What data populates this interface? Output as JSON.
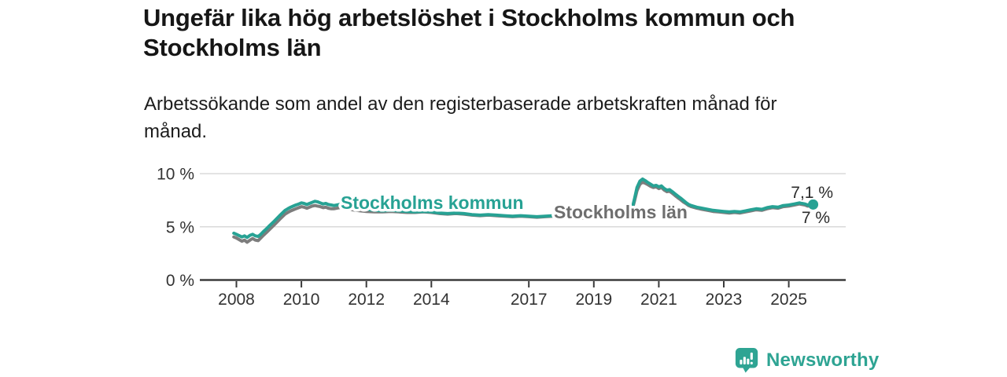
{
  "title": "Ungefär lika hög arbetslöshet i Stockholms kommun och Stockholms län",
  "subtitle": "Arbetssökande som andel av den registerbaserade arbetskraften månad för månad.",
  "footer": {
    "brand": "Newsworthy",
    "brand_color": "#2ea493",
    "logo_icon": "speech-bubble-bar-chart"
  },
  "chart_data": {
    "type": "line",
    "title": "Ungefär lika hög arbetslöshet i Stockholms kommun och Stockholms län",
    "xlabel": "",
    "ylabel": "",
    "unit": "%",
    "ylim": [
      0,
      10.5
    ],
    "xlim": [
      2006.8,
      2026.7
    ],
    "grid": "horizontal-only",
    "legend_position": "inline-labels",
    "colors": {
      "axis": "#3b3b3b",
      "gridline": "#d9d9d9",
      "tick_label": "#333333",
      "end_label_text": "#2b2b2b"
    },
    "y_ticks": [
      {
        "v": 0,
        "label": "0 %"
      },
      {
        "v": 5,
        "label": "5 %"
      },
      {
        "v": 10,
        "label": "10 %"
      }
    ],
    "x_ticks": [
      {
        "v": 2008,
        "label": "2008"
      },
      {
        "v": 2010,
        "label": "2010"
      },
      {
        "v": 2012,
        "label": "2012"
      },
      {
        "v": 2014,
        "label": "2014"
      },
      {
        "v": 2017,
        "label": "2017"
      },
      {
        "v": 2019,
        "label": "2019"
      },
      {
        "v": 2021,
        "label": "2021"
      },
      {
        "v": 2023,
        "label": "2023"
      },
      {
        "v": 2025,
        "label": "2025"
      }
    ],
    "x": [
      2007.92,
      2008.0,
      2008.17,
      2008.25,
      2008.33,
      2008.42,
      2008.5,
      2008.58,
      2008.67,
      2008.75,
      2008.83,
      2008.92,
      2009.0,
      2009.17,
      2009.33,
      2009.5,
      2009.58,
      2009.67,
      2009.75,
      2009.83,
      2009.92,
      2010.0,
      2010.08,
      2010.17,
      2010.25,
      2010.33,
      2010.42,
      2010.5,
      2010.58,
      2010.67,
      2010.75,
      2010.83,
      2010.92,
      2011.0,
      2011.17,
      2011.33,
      2011.5,
      2011.67,
      2011.83,
      2012.0,
      2012.25,
      2012.5,
      2012.75,
      2013.0,
      2013.25,
      2013.5,
      2013.75,
      2014.0,
      2014.25,
      2014.5,
      2014.75,
      2015.0,
      2015.25,
      2015.5,
      2015.75,
      2016.0,
      2016.25,
      2016.5,
      2016.75,
      2017.0,
      2017.25,
      2017.5,
      2017.75,
      2018.0,
      2018.25,
      2018.5,
      2018.75,
      2019.0,
      2019.25,
      2019.5,
      2019.75,
      2020.0,
      2020.17,
      2020.25,
      2020.33,
      2020.42,
      2020.5,
      2020.58,
      2020.67,
      2020.75,
      2020.83,
      2020.92,
      2021.0,
      2021.08,
      2021.17,
      2021.25,
      2021.33,
      2021.42,
      2021.5,
      2021.58,
      2021.67,
      2021.75,
      2021.83,
      2021.92,
      2022.0,
      2022.17,
      2022.33,
      2022.5,
      2022.67,
      2022.83,
      2023.0,
      2023.17,
      2023.33,
      2023.5,
      2023.67,
      2023.83,
      2024.0,
      2024.17,
      2024.33,
      2024.5,
      2024.67,
      2024.83,
      2025.0,
      2025.17,
      2025.33,
      2025.5,
      2025.58,
      2025.75
    ],
    "series": [
      {
        "name": "Stockholms län",
        "color": "#7d7d7d",
        "label_color": "#6e6e6e",
        "end_label": "7 %",
        "end_value": 7.0,
        "values": [
          4.05,
          3.95,
          3.65,
          3.75,
          3.55,
          3.75,
          3.9,
          3.75,
          3.7,
          3.95,
          4.2,
          4.45,
          4.7,
          5.2,
          5.7,
          6.2,
          6.35,
          6.5,
          6.6,
          6.7,
          6.8,
          6.9,
          6.85,
          6.75,
          6.85,
          6.95,
          7.0,
          6.95,
          6.9,
          6.8,
          6.85,
          6.75,
          6.7,
          6.7,
          6.8,
          6.75,
          6.65,
          6.55,
          6.5,
          6.45,
          6.4,
          6.4,
          6.45,
          6.4,
          6.35,
          6.35,
          6.4,
          6.35,
          6.25,
          6.2,
          6.25,
          6.2,
          6.1,
          6.05,
          6.1,
          6.05,
          6.0,
          5.95,
          6.0,
          5.95,
          5.9,
          5.95,
          6.0,
          5.95,
          5.85,
          5.8,
          5.85,
          5.9,
          5.95,
          6.0,
          6.05,
          6.1,
          6.5,
          7.4,
          8.4,
          9.0,
          9.2,
          9.1,
          8.95,
          8.8,
          8.7,
          8.75,
          8.6,
          8.7,
          8.45,
          8.3,
          8.35,
          8.15,
          7.95,
          7.75,
          7.55,
          7.35,
          7.2,
          7.0,
          6.9,
          6.75,
          6.65,
          6.55,
          6.45,
          6.4,
          6.35,
          6.3,
          6.35,
          6.3,
          6.4,
          6.5,
          6.6,
          6.55,
          6.7,
          6.8,
          6.75,
          6.9,
          6.95,
          7.05,
          7.15,
          7.05,
          6.95,
          7.0
        ]
      },
      {
        "name": "Stockholms kommun",
        "color": "#27a294",
        "label_color": "#27a294",
        "end_label": "7,1 %",
        "end_value": 7.1,
        "values": [
          4.4,
          4.3,
          4.05,
          4.15,
          4.0,
          4.2,
          4.3,
          4.15,
          4.1,
          4.3,
          4.55,
          4.8,
          5.05,
          5.55,
          6.05,
          6.55,
          6.7,
          6.85,
          6.95,
          7.05,
          7.15,
          7.25,
          7.2,
          7.1,
          7.2,
          7.3,
          7.4,
          7.35,
          7.25,
          7.15,
          7.2,
          7.1,
          7.05,
          7.0,
          7.1,
          7.05,
          6.95,
          6.85,
          6.75,
          6.65,
          6.55,
          6.5,
          6.55,
          6.5,
          6.45,
          6.4,
          6.45,
          6.4,
          6.3,
          6.25,
          6.3,
          6.25,
          6.15,
          6.1,
          6.15,
          6.1,
          6.05,
          6.0,
          6.05,
          6.0,
          5.95,
          6.0,
          6.05,
          6.0,
          5.9,
          5.85,
          5.9,
          5.95,
          6.0,
          6.05,
          6.1,
          6.15,
          6.6,
          7.6,
          8.7,
          9.3,
          9.5,
          9.35,
          9.15,
          9.0,
          8.85,
          8.9,
          8.75,
          8.85,
          8.6,
          8.45,
          8.5,
          8.3,
          8.1,
          7.9,
          7.7,
          7.5,
          7.3,
          7.1,
          7.0,
          6.85,
          6.75,
          6.65,
          6.55,
          6.5,
          6.45,
          6.4,
          6.45,
          6.4,
          6.5,
          6.6,
          6.7,
          6.65,
          6.8,
          6.9,
          6.85,
          7.0,
          7.05,
          7.15,
          7.25,
          7.15,
          7.05,
          7.1
        ]
      }
    ]
  }
}
